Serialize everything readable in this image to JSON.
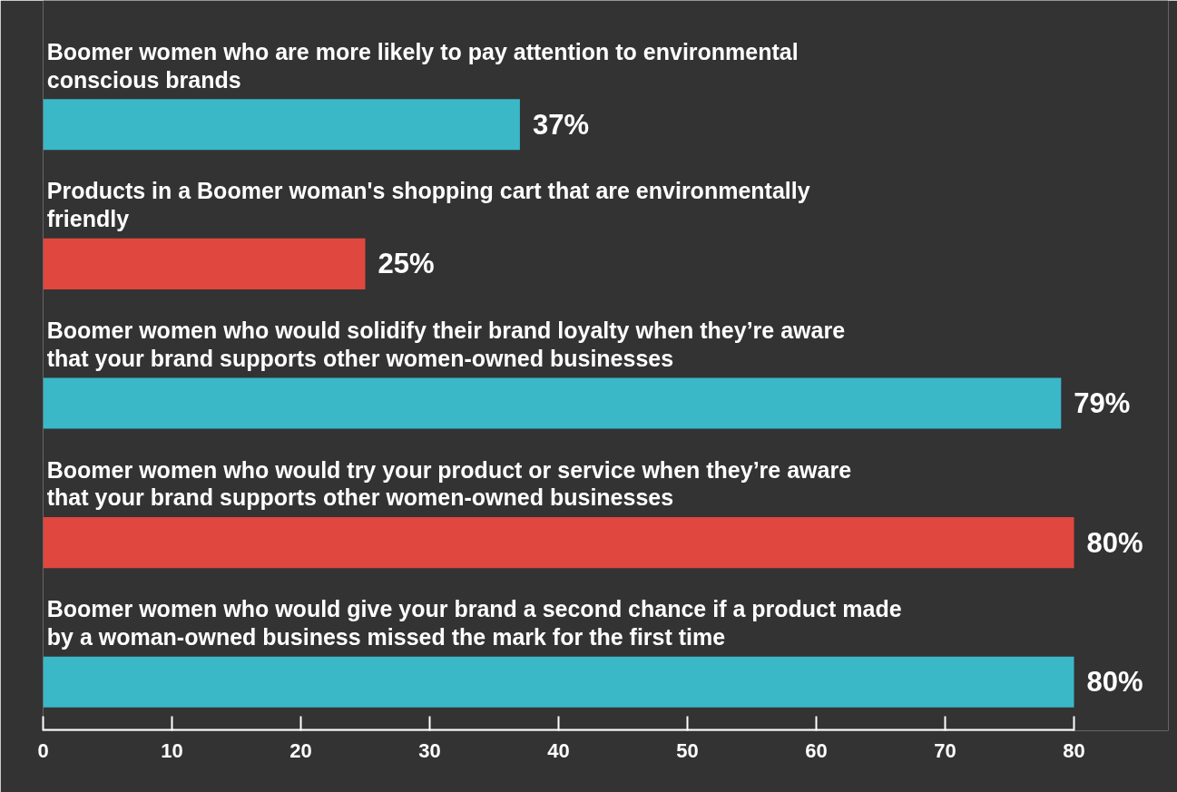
{
  "chart_data": {
    "type": "bar",
    "orientation": "horizontal",
    "categories": [
      "Boomer women who are more likely to pay attention to environmental conscious brands",
      "Products in a Boomer woman's shopping cart that are environmentally friendly",
      "Boomer women who would solidify their brand loyalty when they’re aware that your brand supports other women-owned businesses",
      "Boomer women who would try your product or service when they’re aware that your brand supports other women-owned businesses",
      "Boomer women who would give your brand a second chance if a product made by a woman-owned business missed the mark for the first time"
    ],
    "values": [
      37,
      25,
      79,
      80,
      80
    ],
    "colors": [
      "#3bb8c8",
      "#e0473e",
      "#3bb8c8",
      "#e0473e",
      "#3bb8c8"
    ],
    "value_labels": [
      "37%",
      "25%",
      "79%",
      "80%",
      "80%"
    ],
    "xlim": [
      0,
      80
    ],
    "xticks": [
      0,
      10,
      20,
      30,
      40,
      50,
      60,
      70,
      80
    ],
    "grid": false
  }
}
